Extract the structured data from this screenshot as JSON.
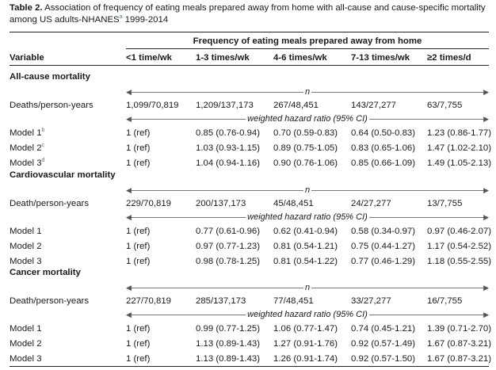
{
  "caption": {
    "label": "Table 2.",
    "text_1": " Association of frequency of eating meals prepared away from home with all-cause and cause-specific mortality among US adults-NHANES",
    "sup_a": "a",
    "text_2": " 1999-2014"
  },
  "header": {
    "group": "Frequency of eating meals prepared away from home",
    "variable": "Variable",
    "cols": [
      "<1 time/wk",
      "1-3 times/wk",
      "4-6 times/wk",
      "7-13 times/wk",
      "≥2 times/d"
    ]
  },
  "arrow_labels": {
    "n": "n",
    "hr": "weighted hazard ratio (95% CI)"
  },
  "sections": [
    {
      "title": "All-cause mortality",
      "deaths": {
        "label": "Deaths/person-years",
        "values": [
          "1,099/70,819",
          "1,209/137,173",
          "267/48,451",
          "143/27,277",
          "63/7,755"
        ]
      },
      "models": [
        {
          "label": "Model 1",
          "sup": "b",
          "values": [
            "1 (ref)",
            "0.85 (0.76-0.94)",
            "0.70 (0.59-0.83)",
            "0.64 (0.50-0.83)",
            "1.23 (0.86-1.77)"
          ]
        },
        {
          "label": "Model 2",
          "sup": "c",
          "values": [
            "1 (ref)",
            "1.03 (0.93-1.15)",
            "0.89 (0.75-1.05)",
            "0.83 (0.65-1.06)",
            "1.47 (1.02-2.10)"
          ]
        },
        {
          "label": "Model 3",
          "sup": "d",
          "values": [
            "1 (ref)",
            "1.04 (0.94-1.16)",
            "0.90 (0.76-1.06)",
            "0.85 (0.66-1.09)",
            "1.49 (1.05-2.13)"
          ]
        }
      ]
    },
    {
      "title": "Cardiovascular mortality",
      "deaths": {
        "label": "Death/person-years",
        "values": [
          "229/70,819",
          "200/137,173",
          "45/48,451",
          "24/27,277",
          "13/7,755"
        ]
      },
      "models": [
        {
          "label": "Model 1",
          "sup": "",
          "values": [
            "1 (ref)",
            "0.77 (0.61-0.96)",
            "0.62 (0.41-0.94)",
            "0.58 (0.34-0.97)",
            "0.97 (0.46-2.07)"
          ]
        },
        {
          "label": "Model 2",
          "sup": "",
          "values": [
            "1 (ref)",
            "0.97 (0.77-1.23)",
            "0.81 (0.54-1.21)",
            "0.75 (0.44-1.27)",
            "1.17 (0.54-2.52)"
          ]
        },
        {
          "label": "Model 3",
          "sup": "",
          "values": [
            "1 (ref)",
            "0.98 (0.78-1.25)",
            "0.81 (0.54-1.22)",
            "0.77 (0.46-1.29)",
            "1.18 (0.55-2.55)"
          ]
        }
      ]
    },
    {
      "title": "Cancer mortality",
      "deaths": {
        "label": "Death/person-years",
        "values": [
          "227/70,819",
          "285/137,173",
          "77/48,451",
          "33/27,277",
          "16/7,755"
        ]
      },
      "models": [
        {
          "label": "Model 1",
          "sup": "",
          "values": [
            "1 (ref)",
            "0.99 (0.77-1.25)",
            "1.06 (0.77-1.47)",
            "0.74 (0.45-1.21)",
            "1.39 (0.71-2.70)"
          ]
        },
        {
          "label": "Model 2",
          "sup": "",
          "values": [
            "1 (ref)",
            "1.13 (0.89-1.43)",
            "1.27 (0.91-1.76)",
            "0.92 (0.57-1.49)",
            "1.67 (0.87-3.21)"
          ]
        },
        {
          "label": "Model 3",
          "sup": "",
          "values": [
            "1 (ref)",
            "1.13 (0.89-1.43)",
            "1.26 (0.91-1.74)",
            "0.92 (0.57-1.50)",
            "1.67 (0.87-3.21)"
          ]
        }
      ]
    }
  ]
}
